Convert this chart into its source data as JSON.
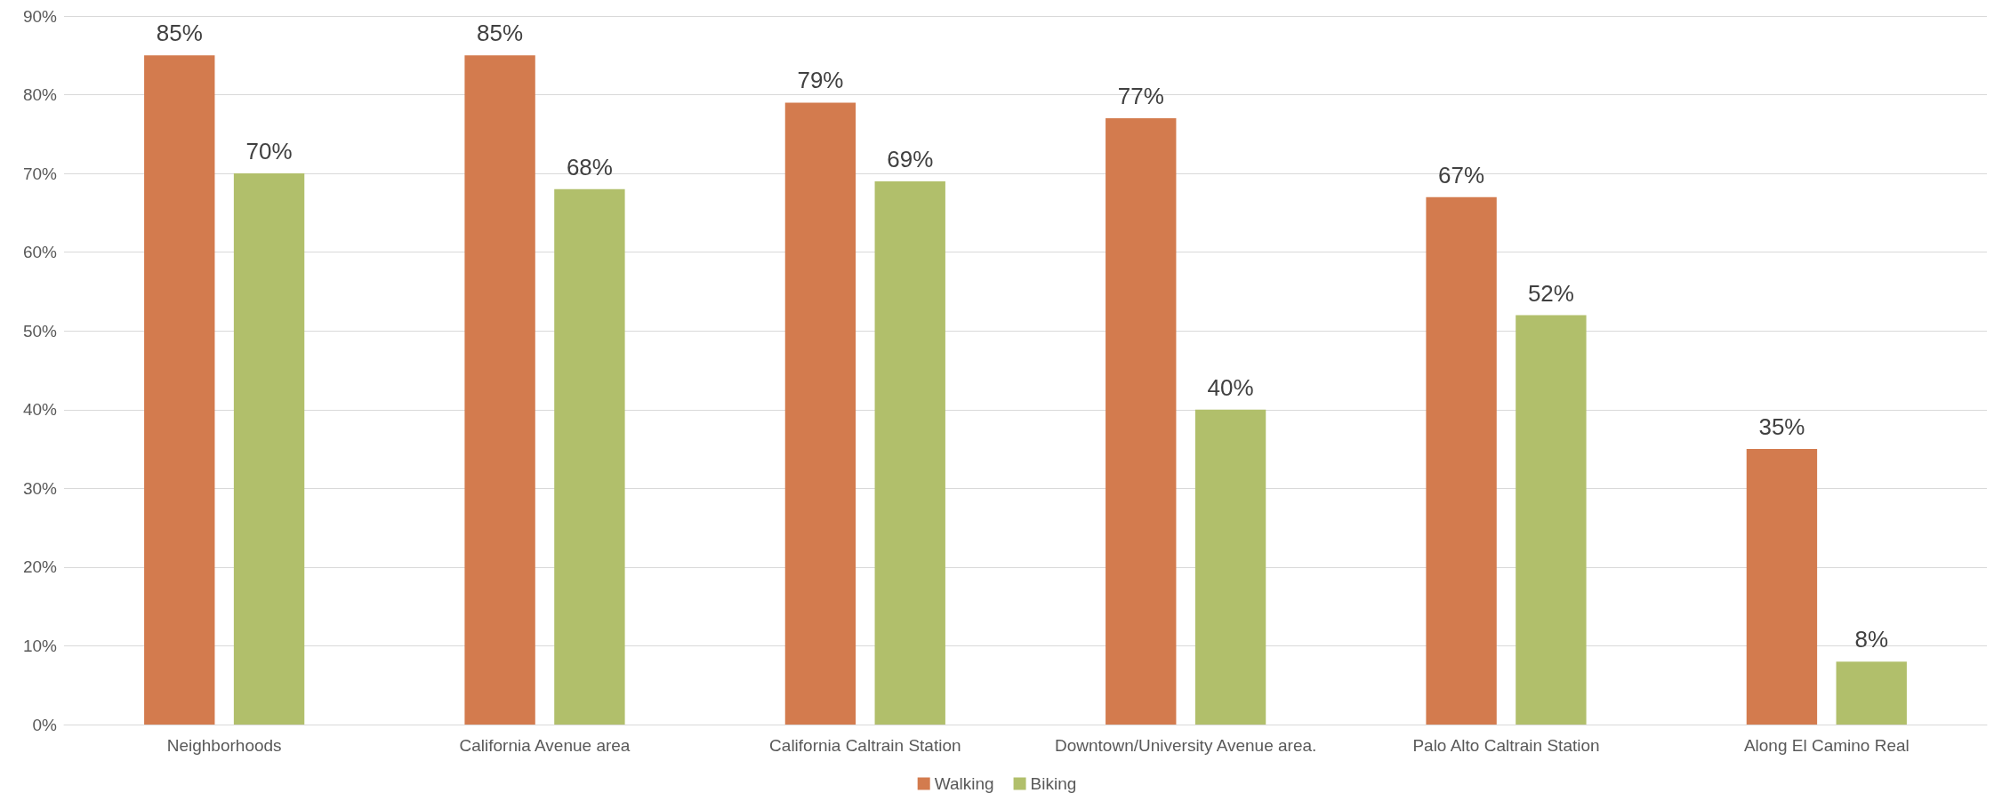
{
  "chart_data": {
    "type": "bar",
    "categories": [
      "Neighborhoods",
      "California Avenue area",
      "California Caltrain Station",
      "Downtown/University Avenue area.",
      "Palo Alto Caltrain Station",
      "Along El Camino Real"
    ],
    "series": [
      {
        "name": "Walking",
        "color": "#d37b4e",
        "values": [
          85,
          85,
          79,
          77,
          67,
          35
        ],
        "value_labels": [
          "85%",
          "85%",
          "79%",
          "77%",
          "67%",
          "35%"
        ]
      },
      {
        "name": "Biking",
        "color": "#b1bf6b",
        "values": [
          70,
          68,
          69,
          40,
          52,
          8
        ],
        "value_labels": [
          "70%",
          "68%",
          "69%",
          "40%",
          "52%",
          "8%"
        ]
      }
    ],
    "ylim": [
      0,
      90
    ],
    "yticks": [
      {
        "value": 0,
        "label": "0%"
      },
      {
        "value": 10,
        "label": "10%"
      },
      {
        "value": 20,
        "label": "20%"
      },
      {
        "value": 30,
        "label": "30%"
      },
      {
        "value": 40,
        "label": "40%"
      },
      {
        "value": 50,
        "label": "50%"
      },
      {
        "value": 60,
        "label": "60%"
      },
      {
        "value": 70,
        "label": "70%"
      },
      {
        "value": 80,
        "label": "80%"
      },
      {
        "value": 90,
        "label": "90%"
      }
    ],
    "grid": "y",
    "legend": "bottom"
  }
}
